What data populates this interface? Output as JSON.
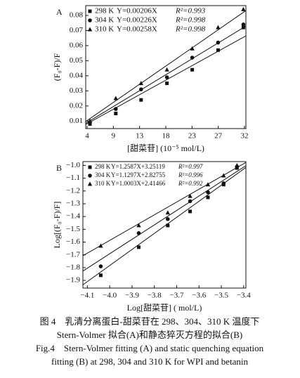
{
  "chart_data": [
    {
      "type": "scatter",
      "panel": "A",
      "ylabel": "(F₀-F)/F",
      "xlabel": "[甜菜苷] (10⁻⁵ mol/L)",
      "x": [
        4.5,
        9.1,
        13.6,
        18.2,
        22.7,
        27.3,
        31.8
      ],
      "xlim": [
        3.75,
        32.25
      ],
      "xticks": [
        4,
        {
          "value": 8.67,
          "label": "9"
        },
        {
          "value": 13.33,
          "label": "13"
        },
        18,
        {
          "value": 22.67,
          "label": "23"
        },
        {
          "value": 27.33,
          "label": "27"
        },
        32
      ],
      "ylim": [
        0.005,
        0.0865
      ],
      "yticks": [
        0.01,
        0.02,
        0.03,
        0.04,
        0.05,
        0.06,
        0.07,
        0.08
      ],
      "series": [
        {
          "name": "298 K",
          "equation": "Y=0.00206X",
          "r2": "R²=0.993",
          "marker": "square",
          "color": "#111111",
          "fit": {
            "slope": 0.00206
          },
          "values": [
            0.008,
            0.015,
            0.024,
            0.035,
            0.044,
            0.057,
            0.072
          ]
        },
        {
          "name": "304 K",
          "equation": "Y=0.00226X",
          "r2": "R²=0.998",
          "marker": "circle",
          "color": "#111111",
          "fit": {
            "slope": 0.00226
          },
          "values": [
            0.009,
            0.018,
            0.031,
            0.039,
            0.052,
            0.062,
            0.074
          ]
        },
        {
          "name": "310 K",
          "equation": "Y=0.00258X",
          "r2": "R²=0.998",
          "marker": "triangle",
          "color": "#111111",
          "fit": {
            "slope": 0.00258
          },
          "values": [
            0.01,
            0.025,
            0.035,
            0.044,
            0.058,
            0.072,
            0.084
          ]
        }
      ]
    },
    {
      "type": "scatter",
      "panel": "B",
      "ylabel": "Log[(F₀-F)/F]",
      "xlabel": "Log[甜菜苷] ( mol/L)",
      "x": [
        -4.04,
        -3.87,
        -3.74,
        -3.64,
        -3.56,
        -3.49,
        -3.43
      ],
      "xlim": [
        -4.12,
        -3.39
      ],
      "xticks": [
        {
          "value": -4.1,
          "label": "−4.1"
        },
        {
          "value": -4.0,
          "label": "−4.0"
        },
        {
          "value": -3.9,
          "label": "−3.9"
        },
        {
          "value": -3.8,
          "label": "−3.8"
        },
        {
          "value": -3.7,
          "label": "−3.7"
        },
        {
          "value": -3.6,
          "label": "−3.6"
        },
        {
          "value": -3.5,
          "label": "−3.5"
        },
        {
          "value": -3.4,
          "label": "−3.4"
        }
      ],
      "ylim": [
        -1.96,
        -0.97
      ],
      "yticks": [
        {
          "value": -1.9,
          "label": "−1.9"
        },
        {
          "value": -1.8,
          "label": "−1.8"
        },
        {
          "value": -1.7,
          "label": "−1.7"
        },
        {
          "value": -1.6,
          "label": "−1.6"
        },
        {
          "value": -1.5,
          "label": "−1.5"
        },
        {
          "value": -1.4,
          "label": "−1.4"
        },
        {
          "value": -1.3,
          "label": "−1.3"
        },
        {
          "value": -1.2,
          "label": "−1.2"
        },
        {
          "value": -1.1,
          "label": "−1.1"
        },
        {
          "value": -1.0,
          "label": "−1.0"
        }
      ],
      "series": [
        {
          "name": "298 K",
          "equation": "Y=1.2587X+3.25119",
          "r2": "R²=0.997",
          "marker": "square",
          "color": "#111111",
          "fit": {
            "slope": 1.2587,
            "intercept": 3.25119
          },
          "values": [
            -1.86,
            -1.64,
            -1.47,
            -1.36,
            -1.25,
            -1.15,
            -1.02
          ]
        },
        {
          "name": "304 K",
          "equation": "Y=1.1297X+2.82755",
          "r2": "R²=0.996",
          "marker": "circle",
          "color": "#111111",
          "fit": {
            "slope": 1.1297,
            "intercept": 2.82755
          },
          "values": [
            -1.79,
            -1.53,
            -1.42,
            -1.28,
            -1.21,
            -1.14,
            -1.01
          ]
        },
        {
          "name": "310 K",
          "equation": "Y=1.0003X+2.41466",
          "r2": "R²=0.992",
          "marker": "triangle",
          "color": "#111111",
          "fit": {
            "slope": 1.0003,
            "intercept": 2.41466
          },
          "values": [
            -1.63,
            -1.47,
            -1.37,
            -1.24,
            -1.15,
            -1.08,
            -1.0
          ]
        }
      ]
    }
  ],
  "caption": [
    "图 4　乳清分离蛋白-甜菜苷在 298、304、310 K 温度下",
    "Stern-Volmer 拟合(A)和静态猝灭方程的拟合(B)",
    "Fig.4　Stern-Volmer fitting (A) and static quenching equation",
    "fitting (B) at 298, 304 and 310 K for WPI and betanin"
  ]
}
